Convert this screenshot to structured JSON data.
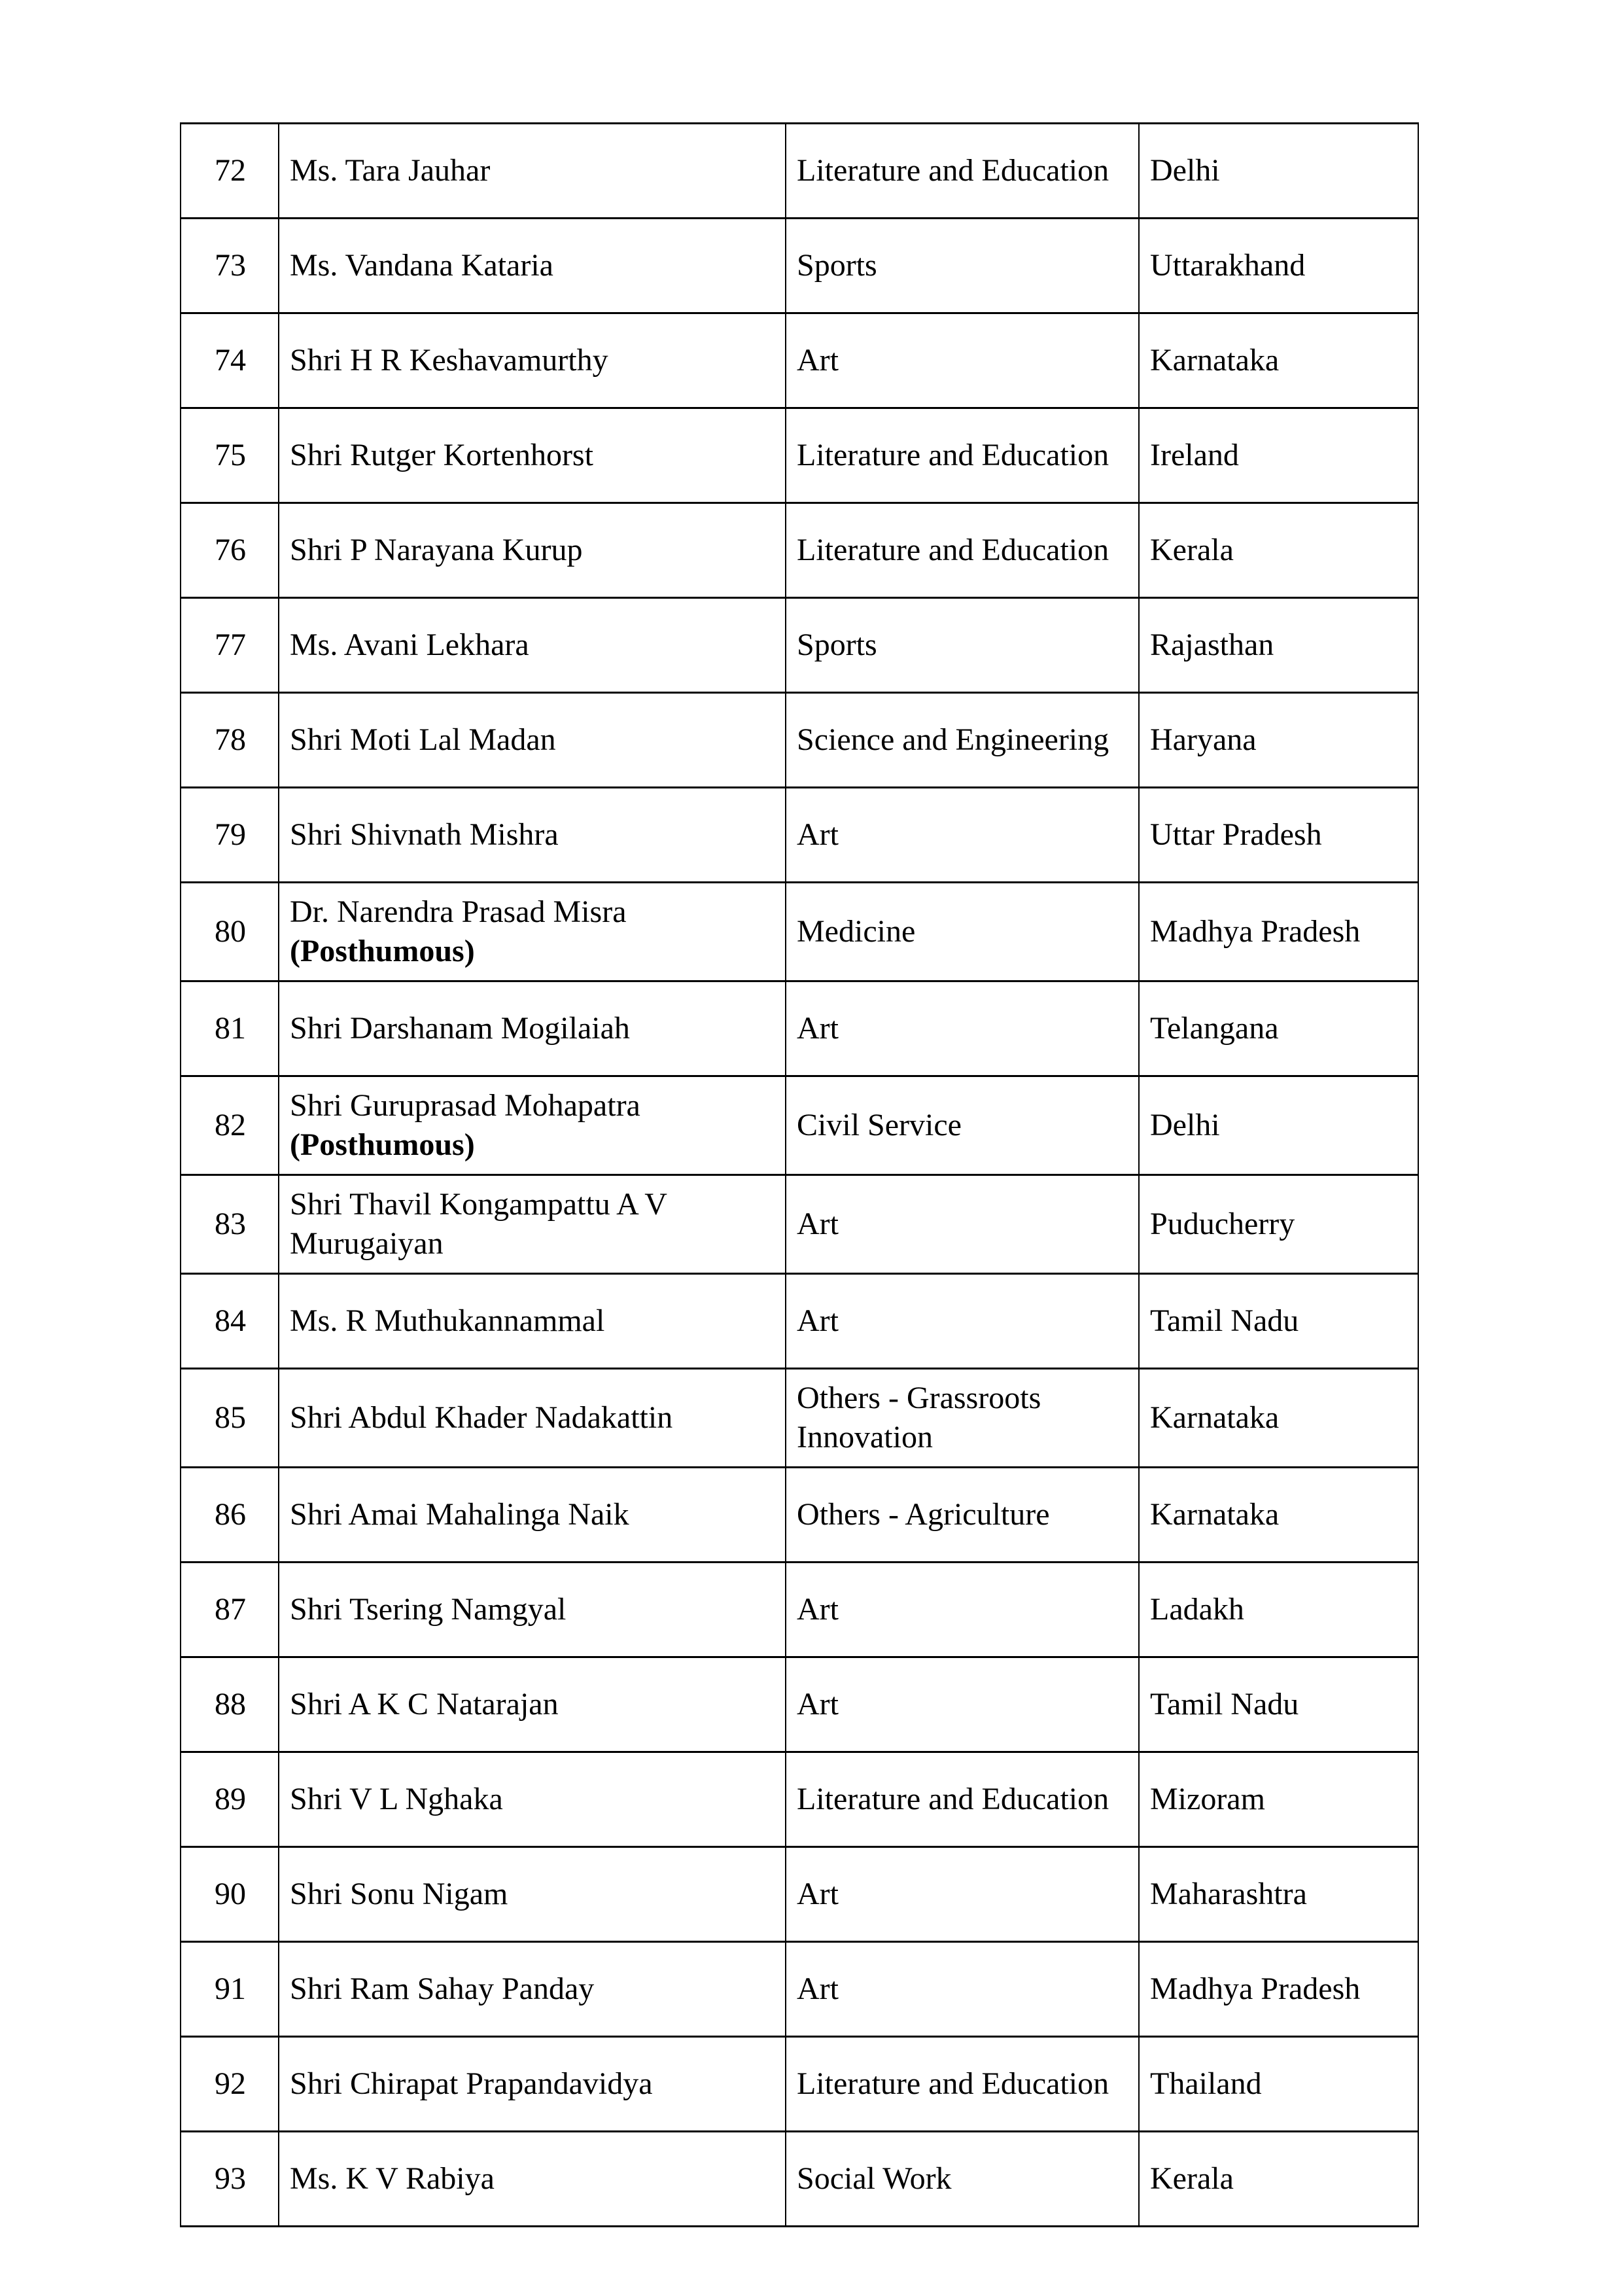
{
  "table": {
    "rows": [
      {
        "num": "72",
        "name": "Ms. Tara Jauhar",
        "field": "Literature and Education",
        "state": "Delhi"
      },
      {
        "num": "73",
        "name": "Ms. Vandana Kataria",
        "field": "Sports",
        "state": "Uttarakhand"
      },
      {
        "num": "74",
        "name": "Shri H R Keshavamurthy",
        "field": "Art",
        "state": "Karnataka"
      },
      {
        "num": "75",
        "name": "Shri Rutger Kortenhorst",
        "field": "Literature and Education",
        "state": "Ireland"
      },
      {
        "num": "76",
        "name": "Shri P Narayana Kurup",
        "field": "Literature and Education",
        "state": "Kerala"
      },
      {
        "num": "77",
        "name": "Ms. Avani Lekhara",
        "field": "Sports",
        "state": "Rajasthan"
      },
      {
        "num": "78",
        "name": "Shri Moti Lal Madan",
        "field": "Science and Engineering",
        "state": "Haryana"
      },
      {
        "num": "79",
        "name": "Shri Shivnath Mishra",
        "field": "Art",
        "state": "Uttar Pradesh"
      },
      {
        "num": "80",
        "name": "Dr. Narendra Prasad Misra",
        "suffix": "(Posthumous)",
        "field": "Medicine",
        "state": "Madhya Pradesh"
      },
      {
        "num": "81",
        "name": "Shri Darshanam Mogilaiah",
        "field": "Art",
        "state": "Telangana"
      },
      {
        "num": "82",
        "name": "Shri Guruprasad Mohapatra",
        "suffix": "(Posthumous)",
        "field": "Civil Service",
        "state": "Delhi"
      },
      {
        "num": "83",
        "name": "Shri Thavil Kongampattu A V Murugaiyan",
        "field": "Art",
        "state": "Puducherry"
      },
      {
        "num": "84",
        "name": "Ms. R Muthukannammal",
        "field": "Art",
        "state": "Tamil Nadu"
      },
      {
        "num": "85",
        "name": "Shri Abdul Khader Nadakattin",
        "field": "Others - Grassroots Innovation",
        "state": "Karnataka"
      },
      {
        "num": "86",
        "name": "Shri Amai Mahalinga Naik",
        "field": "Others - Agriculture",
        "state": "Karnataka"
      },
      {
        "num": "87",
        "name": "Shri Tsering Namgyal",
        "field": "Art",
        "state": "Ladakh"
      },
      {
        "num": "88",
        "name": "Shri A K C Natarajan",
        "field": "Art",
        "state": "Tamil Nadu"
      },
      {
        "num": "89",
        "name": "Shri V L Nghaka",
        "field": "Literature and Education",
        "state": "Mizoram"
      },
      {
        "num": "90",
        "name": "Shri Sonu Nigam",
        "field": "Art",
        "state": "Maharashtra"
      },
      {
        "num": "91",
        "name": "Shri Ram Sahay Panday",
        "field": "Art",
        "state": "Madhya Pradesh"
      },
      {
        "num": "92",
        "name": "Shri Chirapat Prapandavidya",
        "field": "Literature and Education",
        "state": "Thailand"
      },
      {
        "num": "93",
        "name": "Ms. K V Rabiya",
        "field": "Social Work",
        "state": "Kerala"
      }
    ]
  }
}
